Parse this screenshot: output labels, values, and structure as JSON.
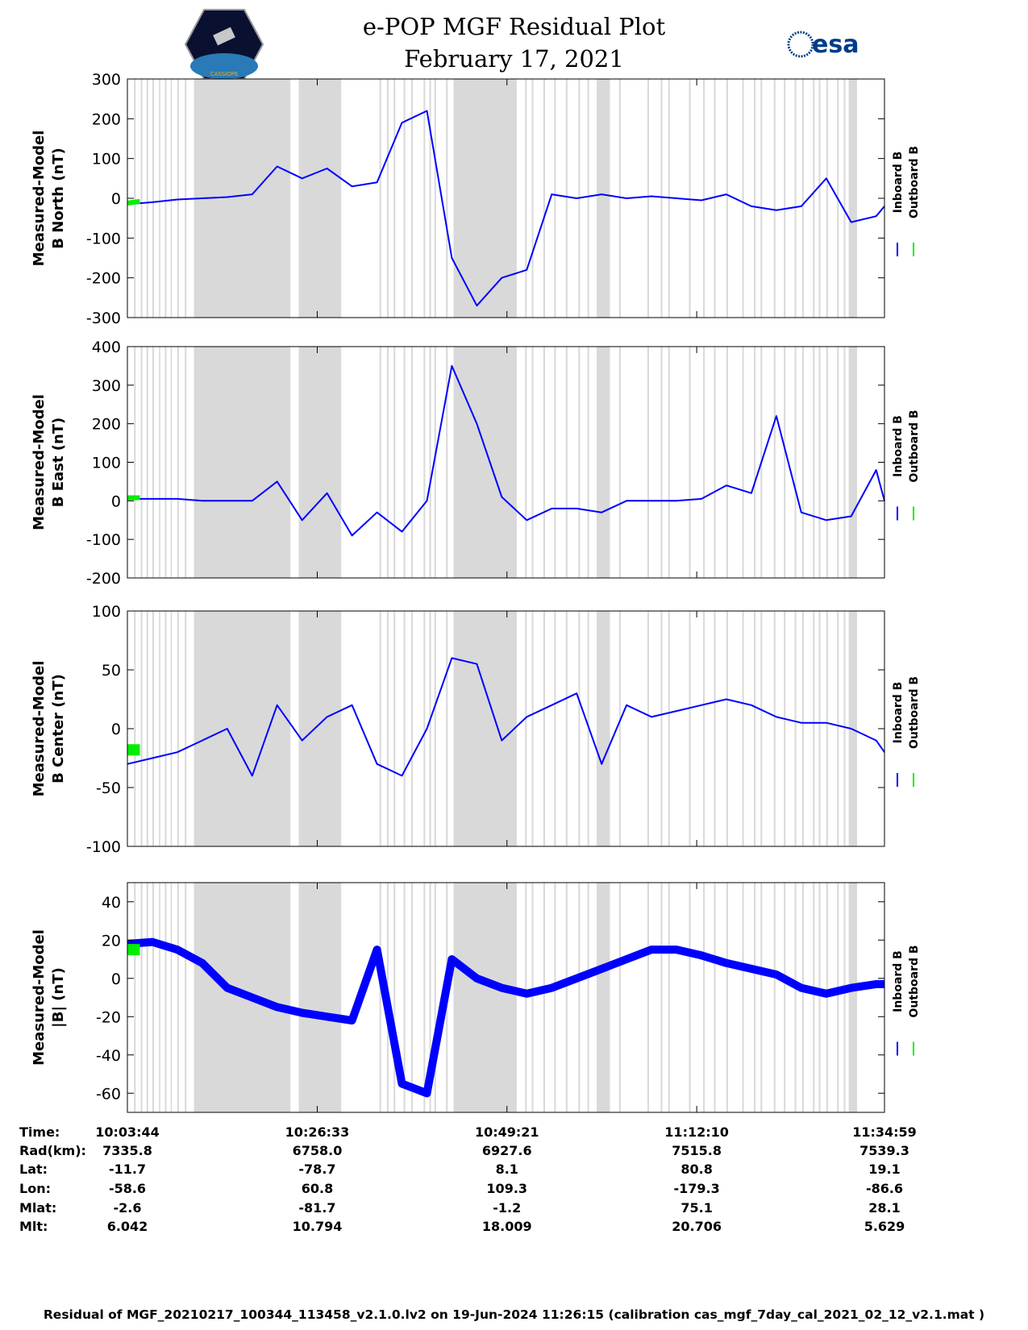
{
  "header": {
    "title_line1": "e-POP MGF Residual Plot",
    "title_line2": "February 17, 2021",
    "left_logo_text": "CASSIOPE",
    "right_logo_text": "esa"
  },
  "chart_data": [
    {
      "type": "line",
      "ylabel_line1": "Measured-Model",
      "ylabel_line2": "B North (nT)",
      "ylim": [
        -300,
        300
      ],
      "yticks": [
        "300",
        "200",
        "100",
        "0",
        "-100",
        "-200",
        "-300"
      ],
      "legend": [
        "Inboard B",
        "Outboard B"
      ],
      "series": [
        {
          "name": "Inboard B",
          "color": "#0000ff",
          "x_min": [
            0,
            3,
            6,
            9,
            12,
            15,
            18,
            21,
            24,
            27,
            30,
            33,
            36,
            39,
            42,
            45,
            48,
            51,
            54,
            57,
            60,
            63,
            66,
            69,
            72,
            75,
            78,
            81,
            84,
            87,
            90,
            91
          ],
          "y": [
            -15,
            -10,
            -3,
            0,
            3,
            10,
            80,
            50,
            75,
            30,
            40,
            190,
            220,
            -150,
            -270,
            -200,
            -180,
            10,
            0,
            10,
            0,
            5,
            0,
            -5,
            10,
            -20,
            -30,
            -20,
            50,
            -60,
            -45,
            -20
          ]
        },
        {
          "name": "Outboard B",
          "color": "#00ee00",
          "x_min": [
            0,
            1.5
          ],
          "y": [
            -12,
            -8
          ]
        }
      ]
    },
    {
      "type": "line",
      "ylabel_line1": "Measured-Model",
      "ylabel_line2": "B East (nT)",
      "ylim": [
        -200,
        400
      ],
      "yticks": [
        "400",
        "300",
        "200",
        "100",
        "0",
        "-100",
        "-200"
      ],
      "legend": [
        "Inboard B",
        "Outboard B"
      ],
      "series": [
        {
          "name": "Inboard B",
          "color": "#0000ff",
          "x_min": [
            0,
            3,
            6,
            9,
            12,
            15,
            18,
            21,
            24,
            27,
            30,
            33,
            36,
            39,
            42,
            45,
            48,
            51,
            54,
            57,
            60,
            63,
            66,
            69,
            72,
            75,
            78,
            81,
            84,
            87,
            90,
            91
          ],
          "y": [
            5,
            5,
            5,
            0,
            0,
            0,
            50,
            -50,
            20,
            -90,
            -30,
            -80,
            0,
            350,
            200,
            10,
            -50,
            -20,
            -20,
            -30,
            0,
            0,
            0,
            5,
            40,
            20,
            220,
            -30,
            -50,
            -40,
            80,
            0
          ]
        },
        {
          "name": "Outboard B",
          "color": "#00ee00",
          "x_min": [
            0,
            1.5
          ],
          "y": [
            8,
            8
          ]
        }
      ]
    },
    {
      "type": "line",
      "ylabel_line1": "Measured-Model",
      "ylabel_line2": "B Center (nT)",
      "ylim": [
        -100,
        100
      ],
      "yticks": [
        "100",
        "50",
        "0",
        "-50",
        "-100"
      ],
      "legend": [
        "Inboard B",
        "Outboard B"
      ],
      "series": [
        {
          "name": "Inboard B",
          "color": "#0000ff",
          "x_min": [
            0,
            3,
            6,
            9,
            12,
            15,
            18,
            21,
            24,
            27,
            30,
            33,
            36,
            39,
            42,
            45,
            48,
            51,
            54,
            57,
            60,
            63,
            66,
            69,
            72,
            75,
            78,
            81,
            84,
            87,
            90,
            91
          ],
          "y": [
            -30,
            -25,
            -20,
            -10,
            0,
            -40,
            20,
            -10,
            10,
            20,
            -30,
            -40,
            0,
            60,
            55,
            -10,
            10,
            20,
            30,
            -30,
            20,
            10,
            15,
            20,
            25,
            20,
            10,
            5,
            5,
            0,
            -10,
            -20
          ]
        },
        {
          "name": "Outboard B",
          "color": "#00ee00",
          "x_min": [
            0,
            1.5
          ],
          "y": [
            -18,
            -18
          ]
        }
      ]
    },
    {
      "type": "line",
      "ylabel_line1": "Measured-Model",
      "ylabel_line2": "|B| (nT)",
      "ylim": [
        -70,
        50
      ],
      "yticks": [
        "40",
        "20",
        "0",
        "-20",
        "-40",
        "-60"
      ],
      "legend": [
        "Inboard B",
        "Outboard B"
      ],
      "series": [
        {
          "name": "Inboard B",
          "color": "#0000ff",
          "x_min": [
            0,
            3,
            6,
            9,
            12,
            15,
            18,
            21,
            24,
            27,
            30,
            33,
            36,
            39,
            42,
            45,
            48,
            51,
            54,
            57,
            60,
            63,
            66,
            69,
            72,
            75,
            78,
            81,
            84,
            87,
            90,
            91
          ],
          "y": [
            18,
            19,
            15,
            8,
            -5,
            -10,
            -15,
            -18,
            -20,
            -22,
            15,
            -55,
            -60,
            10,
            0,
            -5,
            -8,
            -5,
            0,
            5,
            10,
            15,
            15,
            12,
            8,
            5,
            2,
            -5,
            -8,
            -5,
            -3,
            -3
          ]
        },
        {
          "name": "Outboard B",
          "color": "#00ee00",
          "x_min": [
            0,
            1.5
          ],
          "y": [
            15,
            15
          ]
        }
      ]
    }
  ],
  "gaps_min": [
    [
      0.8,
      1.0
    ],
    [
      1.6,
      1.8
    ],
    [
      2.3,
      2.5
    ],
    [
      3.0,
      3.2
    ],
    [
      3.8,
      3.95
    ],
    [
      4.5,
      4.7
    ],
    [
      5.2,
      5.35
    ],
    [
      6.0,
      6.2
    ],
    [
      6.9,
      7.1
    ],
    [
      8.0,
      19.6
    ],
    [
      20.6,
      25.7
    ],
    [
      30.3,
      30.5
    ],
    [
      31.2,
      31.4
    ],
    [
      32.0,
      32.2
    ],
    [
      33.2,
      33.4
    ],
    [
      34.1,
      34.3
    ],
    [
      35.6,
      35.8
    ],
    [
      36.3,
      36.5
    ],
    [
      36.9,
      37.1
    ],
    [
      38.3,
      38.5
    ],
    [
      39.2,
      46.8
    ],
    [
      47.8,
      48.0
    ],
    [
      48.6,
      48.8
    ],
    [
      50.0,
      50.2
    ],
    [
      51.3,
      51.5
    ],
    [
      52.7,
      52.9
    ],
    [
      54.2,
      54.4
    ],
    [
      55.3,
      55.5
    ],
    [
      56.4,
      58.0
    ],
    [
      59.1,
      59.3
    ],
    [
      62.5,
      62.7
    ],
    [
      64.1,
      64.3
    ],
    [
      65.0,
      65.2
    ],
    [
      67.5,
      67.7
    ],
    [
      69.2,
      69.4
    ],
    [
      70.5,
      70.7
    ],
    [
      72.0,
      72.2
    ],
    [
      73.9,
      74.1
    ],
    [
      75.3,
      75.5
    ],
    [
      76.1,
      76.3
    ],
    [
      77.7,
      77.9
    ],
    [
      78.9,
      79.1
    ],
    [
      80.2,
      80.4
    ],
    [
      81.1,
      81.3
    ],
    [
      82.4,
      82.6
    ],
    [
      83.1,
      83.3
    ],
    [
      84.0,
      84.2
    ],
    [
      85.3,
      85.5
    ],
    [
      86.1,
      86.3
    ],
    [
      86.7,
      87.7
    ]
  ],
  "ephemeris": {
    "labels": [
      "Time:",
      "Rad(km):",
      "Lat:",
      "Lon:",
      "Mlat:",
      "Mlt:"
    ],
    "columns": [
      [
        "10:03:44",
        "7335.8",
        "-11.7",
        "-58.6",
        "-2.6",
        "6.042"
      ],
      [
        "10:26:33",
        "6758.0",
        "-78.7",
        "60.8",
        "-81.7",
        "10.794"
      ],
      [
        "10:49:21",
        "6927.6",
        "8.1",
        "109.3",
        "-1.2",
        "18.009"
      ],
      [
        "11:12:10",
        "7515.8",
        "80.8",
        "-179.3",
        "75.1",
        "20.706"
      ],
      [
        "11:34:59",
        "7539.3",
        "19.1",
        "-86.6",
        "28.1",
        "5.629"
      ]
    ]
  },
  "footer": "Residual of MGF_20210217_100344_113458_v2.1.0.lv2 on 19-Jun-2024 11:26:15 (calibration cas_mgf_7day_cal_2021_02_12_v2.1.mat )"
}
